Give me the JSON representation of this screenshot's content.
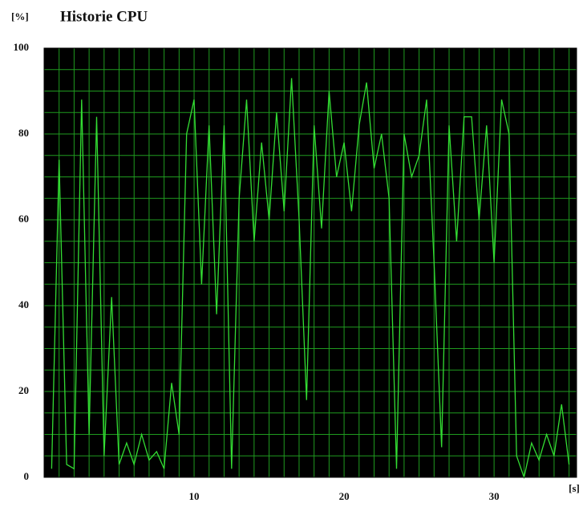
{
  "chart_data": {
    "type": "line",
    "title": "Historie CPU",
    "y_label": "[%]",
    "x_label": "[s]",
    "x": [
      0.5,
      1,
      1.5,
      2,
      2.5,
      3,
      3.5,
      4,
      4.5,
      5,
      5.5,
      6,
      6.5,
      7,
      7.5,
      8,
      8.5,
      9,
      9.5,
      10,
      10.5,
      11,
      11.5,
      12,
      12.5,
      13,
      13.5,
      14,
      14.5,
      15,
      15.5,
      16,
      16.5,
      17,
      17.5,
      18,
      18.5,
      19,
      19.5,
      20,
      20.5,
      21,
      21.5,
      22,
      22.5,
      23,
      23.5,
      24,
      24.5,
      25,
      25.5,
      26,
      26.5,
      27,
      27.5,
      28,
      28.5,
      29,
      29.5,
      30,
      30.5,
      31,
      31.5,
      32,
      32.5,
      33,
      33.5,
      34,
      34.5,
      35
    ],
    "series": [
      {
        "color": "#33dd33",
        "values": [
          2,
          74,
          3,
          2,
          88,
          10,
          84,
          5,
          42,
          3,
          8,
          3,
          10,
          4,
          6,
          2,
          22,
          10,
          80,
          88,
          45,
          82,
          38,
          82,
          2,
          65,
          88,
          55,
          78,
          60,
          85,
          62,
          93,
          60,
          18,
          82,
          58,
          90,
          70,
          78,
          62,
          82,
          92,
          72,
          80,
          65,
          2,
          80,
          70,
          75,
          88,
          50,
          7,
          82,
          55,
          84,
          84,
          60,
          82,
          50,
          88,
          80,
          5,
          0,
          8,
          4,
          10,
          5,
          17,
          3
        ]
      }
    ],
    "xlim": [
      0,
      35.5
    ],
    "ylim": [
      0,
      100
    ],
    "xticks": [
      10,
      20,
      30
    ],
    "yticks": [
      0,
      20,
      40,
      60,
      80,
      100
    ],
    "grid": {
      "x_step": 1,
      "y_step": 5,
      "color": "#1f9a1f"
    },
    "background": "#000000"
  }
}
